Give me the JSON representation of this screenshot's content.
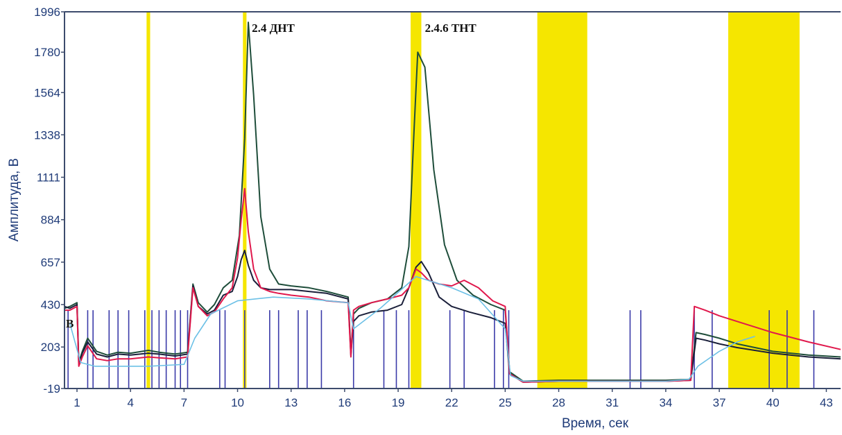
{
  "chart_data": {
    "type": "line",
    "title": "",
    "xlabel": "Время, сек",
    "ylabel": "Амплитуда, В",
    "xlim": [
      0.3,
      43.8
    ],
    "ylim": [
      -19,
      1996
    ],
    "x_ticks": [
      1,
      4,
      7,
      10,
      13,
      16,
      19,
      22,
      25,
      28,
      31,
      34,
      37,
      40,
      43
    ],
    "y_ticks": [
      -19,
      203,
      430,
      657,
      884,
      1111,
      1338,
      1564,
      1780,
      1996
    ],
    "grid": false,
    "legend": "none",
    "highlight_bands": [
      [
        4.9,
        5.1
      ],
      [
        10.3,
        10.5
      ],
      [
        19.7,
        20.3
      ],
      [
        26.8,
        29.6
      ],
      [
        37.5,
        41.5
      ]
    ],
    "annotations": [
      {
        "text": "2.4 ДНТ",
        "x": 10.8,
        "y": 1910
      },
      {
        "text": "2.4.6 ТНТ",
        "x": 20.5,
        "y": 1910
      }
    ],
    "small_label": "B",
    "markers": [
      0.5,
      1.6,
      1.9,
      2.8,
      3.3,
      3.9,
      4.8,
      5.2,
      5.6,
      6.0,
      6.5,
      6.8,
      7.2,
      9.0,
      9.3,
      10.4,
      11.8,
      12.3,
      13.4,
      13.9,
      14.7,
      16.5,
      18.2,
      18.9,
      19.6,
      21.9,
      22.7,
      24.4,
      24.9,
      25.2,
      32.0,
      32.6,
      35.6,
      36.6,
      39.8,
      40.8,
      42.3
    ],
    "series": [
      {
        "color": "#1e4d3a",
        "x": [
          0.3,
          0.6,
          1.0,
          1.1,
          1.3,
          1.6,
          2.1,
          2.7,
          3.3,
          4.0,
          5.0,
          5.6,
          6.5,
          7.2,
          7.5,
          7.8,
          8.3,
          8.7,
          9.2,
          9.7,
          10.1,
          10.4,
          10.6,
          10.9,
          11.3,
          11.8,
          12.3,
          13.0,
          14.0,
          15.0,
          16.2,
          16.35,
          16.5,
          16.8,
          17.5,
          18.4,
          19.2,
          19.6,
          19.9,
          20.1,
          20.5,
          21.0,
          21.6,
          22.3,
          23.2,
          24.2,
          25.0,
          25.25,
          26.0,
          28.0,
          31.0,
          34.0,
          35.4,
          35.7,
          36.2,
          37.0,
          38.0,
          40.0,
          42.0,
          43.8
        ],
        "y": [
          410,
          420,
          440,
          120,
          180,
          250,
          180,
          160,
          175,
          170,
          185,
          175,
          165,
          175,
          540,
          440,
          390,
          430,
          520,
          560,
          800,
          1320,
          1940,
          1550,
          900,
          620,
          540,
          530,
          520,
          500,
          470,
          170,
          380,
          410,
          440,
          460,
          520,
          740,
          1380,
          1780,
          1700,
          1150,
          750,
          560,
          480,
          430,
          400,
          70,
          20,
          25,
          25,
          25,
          30,
          280,
          270,
          250,
          220,
          180,
          160,
          150
        ]
      },
      {
        "color": "#1a1f3a",
        "x": [
          0.3,
          0.6,
          1.0,
          1.1,
          1.3,
          1.6,
          2.1,
          2.7,
          3.3,
          4.0,
          5.0,
          5.6,
          6.5,
          7.2,
          7.5,
          7.8,
          8.3,
          8.7,
          9.2,
          9.7,
          10.0,
          10.2,
          10.4,
          10.6,
          10.9,
          11.3,
          11.8,
          12.3,
          13.0,
          14.0,
          15.0,
          16.2,
          16.35,
          16.5,
          16.8,
          17.5,
          18.4,
          19.2,
          19.6,
          20.0,
          20.3,
          20.7,
          21.3,
          22.0,
          23.0,
          24.2,
          25.0,
          25.25,
          26.0,
          28.0,
          31.0,
          34.0,
          35.4,
          35.7,
          36.2,
          37.0,
          38.0,
          40.0,
          42.0,
          43.8
        ],
        "y": [
          420,
          410,
          430,
          110,
          170,
          230,
          165,
          150,
          165,
          160,
          170,
          165,
          155,
          165,
          530,
          420,
          380,
          400,
          480,
          500,
          580,
          670,
          720,
          640,
          560,
          520,
          510,
          510,
          510,
          500,
          490,
          460,
          160,
          340,
          370,
          390,
          400,
          430,
          520,
          630,
          660,
          600,
          470,
          420,
          390,
          360,
          330,
          60,
          15,
          20,
          20,
          20,
          25,
          250,
          240,
          220,
          200,
          170,
          150,
          140
        ]
      },
      {
        "color": "#e0184c",
        "x": [
          0.3,
          0.6,
          1.0,
          1.1,
          1.3,
          1.6,
          2.1,
          2.7,
          3.3,
          4.0,
          5.0,
          5.6,
          6.5,
          7.2,
          7.5,
          7.8,
          8.3,
          8.7,
          9.2,
          9.7,
          10.0,
          10.2,
          10.4,
          10.6,
          10.9,
          11.3,
          11.8,
          12.3,
          13.0,
          14.0,
          15.0,
          16.2,
          16.35,
          16.5,
          16.8,
          17.5,
          18.4,
          19.2,
          19.6,
          20.0,
          20.3,
          20.7,
          21.3,
          22.0,
          22.7,
          23.5,
          24.3,
          25.0,
          25.25,
          26.0,
          28.0,
          31.0,
          34.0,
          35.4,
          35.6,
          36.2,
          37.0,
          38.0,
          40.0,
          42.0,
          43.8
        ],
        "y": [
          400,
          400,
          420,
          100,
          150,
          210,
          140,
          130,
          140,
          140,
          150,
          145,
          140,
          150,
          520,
          420,
          370,
          390,
          460,
          520,
          680,
          880,
          1050,
          820,
          620,
          520,
          500,
          490,
          480,
          470,
          450,
          440,
          150,
          400,
          420,
          440,
          460,
          480,
          520,
          620,
          600,
          560,
          540,
          530,
          560,
          520,
          450,
          420,
          60,
          15,
          20,
          20,
          20,
          25,
          420,
          400,
          370,
          340,
          280,
          230,
          190
        ]
      },
      {
        "color": "#6cc0e6",
        "x": [
          0.6,
          1.2,
          2.0,
          5.0,
          7.0,
          7.6,
          8.5,
          10.0,
          12.0,
          14.0,
          16.2,
          16.5,
          18.0,
          20.0,
          22.0,
          23.5,
          25.0,
          25.3,
          26.0,
          28.0,
          31.0,
          34.0,
          35.3,
          35.8,
          37.0,
          38.0,
          39.0
        ],
        "y": [
          330,
          120,
          100,
          100,
          110,
          250,
          380,
          450,
          470,
          460,
          440,
          300,
          410,
          580,
          520,
          460,
          300,
          50,
          20,
          20,
          20,
          20,
          30,
          100,
          180,
          230,
          260
        ]
      }
    ]
  }
}
